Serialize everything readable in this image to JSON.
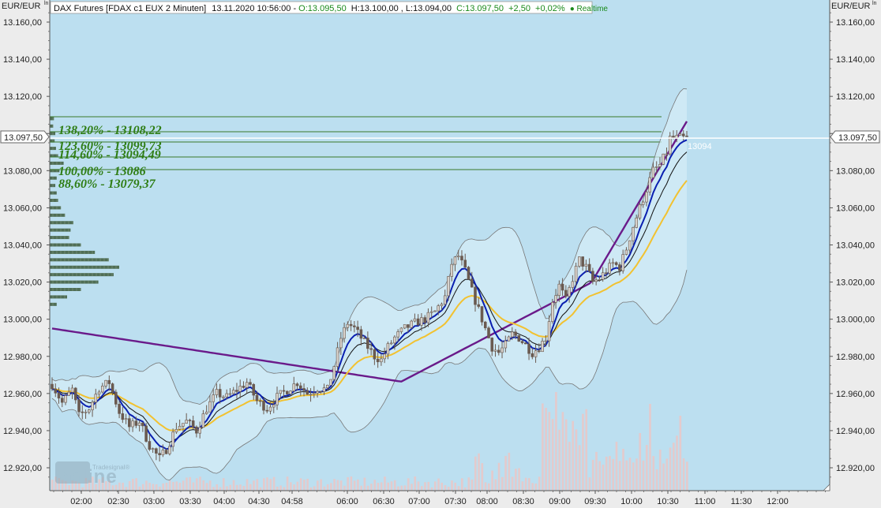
{
  "header": {
    "unit_left": "EUR/EUR",
    "unit_left_sup": "ln",
    "unit_right": "EUR/EUR",
    "unit_right_sup": "ln",
    "instrument": "DAX Futures [FDAX c1 EUX 2 Minuten]",
    "datetime": "13.11.2020 10:56:00",
    "separator": " - ",
    "open": "O:13.095,50",
    "high": "H:13.100,00",
    "low": "L:13.094,00",
    "close": "C:13.097,50",
    "change": "+2,50",
    "change_pct": "+0,02%",
    "realtime": "● Realtime"
  },
  "price_tag_left": "13.097,50",
  "price_tag_right": "13.097,50",
  "last_label": "13094",
  "watermark": {
    "small": "Tradesignal®",
    "big": "online"
  },
  "colors": {
    "plot_bg": "#bcdff0",
    "candle": "#6a5a50",
    "bollinger": "#777777",
    "ema_fast": "#0a1fb0",
    "ema_black": "#111111",
    "ema_yellow": "#f2c230",
    "ema_purple": "#6a1a8a",
    "fib_line": "#3a7a2a",
    "fib_text": "#2e7d14",
    "volume": "#e8c8c8",
    "profile": "#3c5a3a"
  },
  "chart_data": {
    "type": "candlestick",
    "title": "DAX Futures [FDAX c1 EUX 2 Minuten]",
    "ylim": [
      12910,
      13165
    ],
    "yticks": [
      13160,
      13140,
      13120,
      13100,
      13080,
      13060,
      13040,
      13020,
      13000,
      12980,
      12960,
      12940,
      12920
    ],
    "ytick_labels": [
      "13.160,00",
      "13.140,00",
      "13.120,00",
      "13.100,00",
      "13.080,00",
      "13.060,00",
      "13.040,00",
      "13.020,00",
      "13.000,00",
      "12.980,00",
      "12.960,00",
      "12.940,00",
      "12.920,00"
    ],
    "x_labels": [
      "02:00",
      "02:30",
      "03:00",
      "03:30",
      "04:00",
      "04:30",
      "04:58",
      "06:00",
      "06:30",
      "07:00",
      "07:30",
      "08:00",
      "08:30",
      "09:00",
      "09:30",
      "10:00",
      "10:30",
      "11:00",
      "11:30",
      "12:00"
    ],
    "last_price": 13097.5,
    "last_label_value": 13094,
    "fibonacci": [
      {
        "label": "138,20% - 13108,22",
        "value": 13108.22
      },
      {
        "label": "123,60% - 13099,73",
        "value": 13099.73
      },
      {
        "label": "114,60% - 13094,49",
        "value": 13094.49
      },
      {
        "label": "100,00% - 13086",
        "value": 13086
      },
      {
        "label": "88,60% - 13079,37",
        "value": 13079.37
      }
    ],
    "price_path": [
      [
        0,
        12965
      ],
      [
        3,
        12955
      ],
      [
        6,
        12962
      ],
      [
        8,
        12948
      ],
      [
        11,
        12952
      ],
      [
        14,
        12963
      ],
      [
        17,
        12966
      ],
      [
        20,
        12950
      ],
      [
        23,
        12942
      ],
      [
        26,
        12945
      ],
      [
        29,
        12932
      ],
      [
        32,
        12925
      ],
      [
        34,
        12930
      ],
      [
        37,
        12942
      ],
      [
        40,
        12945
      ],
      [
        43,
        12940
      ],
      [
        46,
        12952
      ],
      [
        49,
        12960
      ],
      [
        52,
        12958
      ],
      [
        55,
        12962
      ],
      [
        58,
        12966
      ],
      [
        61,
        12956
      ],
      [
        64,
        12952
      ],
      [
        67,
        12958
      ],
      [
        70,
        12962
      ],
      [
        73,
        12966
      ],
      [
        76,
        12960
      ],
      [
        79,
        12963
      ],
      [
        82,
        12962
      ],
      [
        84,
        12975
      ],
      [
        86,
        12990
      ],
      [
        88,
        12998
      ],
      [
        90,
        12995
      ],
      [
        92,
        12990
      ],
      [
        94,
        12985
      ],
      [
        96,
        12980
      ],
      [
        98,
        12978
      ],
      [
        100,
        12985
      ],
      [
        102,
        12990
      ],
      [
        105,
        12995
      ],
      [
        108,
        12998
      ],
      [
        111,
        13000
      ],
      [
        114,
        13004
      ],
      [
        117,
        13012
      ],
      [
        119,
        13030
      ],
      [
        121,
        13034
      ],
      [
        123,
        13026
      ],
      [
        125,
        13015
      ],
      [
        127,
        13005
      ],
      [
        129,
        12995
      ],
      [
        131,
        12985
      ],
      [
        133,
        12982
      ],
      [
        135,
        12986
      ],
      [
        137,
        12992
      ],
      [
        139,
        12990
      ],
      [
        141,
        12986
      ],
      [
        143,
        12982
      ],
      [
        145,
        12985
      ],
      [
        147,
        12990
      ],
      [
        149,
        13010
      ],
      [
        151,
        13018
      ],
      [
        153,
        13010
      ],
      [
        155,
        13022
      ],
      [
        157,
        13032
      ],
      [
        159,
        13028
      ],
      [
        161,
        13020
      ],
      [
        163,
        13022
      ],
      [
        165,
        13026
      ],
      [
        167,
        13030
      ],
      [
        169,
        13028
      ],
      [
        171,
        13038
      ],
      [
        173,
        13050
      ],
      [
        175,
        13060
      ],
      [
        177,
        13070
      ],
      [
        179,
        13080
      ],
      [
        181,
        13083
      ],
      [
        183,
        13090
      ],
      [
        184,
        13097.5
      ]
    ],
    "volume_profile": [
      [
        13108,
        0.06
      ],
      [
        13104,
        0.05
      ],
      [
        13100,
        0.08
      ],
      [
        13096,
        0.07
      ],
      [
        13092,
        0.09
      ],
      [
        13088,
        0.12
      ],
      [
        13084,
        0.2
      ],
      [
        13080,
        0.14
      ],
      [
        13076,
        0.1
      ],
      [
        13072,
        0.08
      ],
      [
        13068,
        0.1
      ],
      [
        13064,
        0.12
      ],
      [
        13060,
        0.16
      ],
      [
        13056,
        0.22
      ],
      [
        13052,
        0.34
      ],
      [
        13048,
        0.3
      ],
      [
        13044,
        0.28
      ],
      [
        13040,
        0.45
      ],
      [
        13036,
        0.65
      ],
      [
        13032,
        0.85
      ],
      [
        13028,
        1.0
      ],
      [
        13024,
        0.92
      ],
      [
        13020,
        0.7
      ],
      [
        13016,
        0.45
      ],
      [
        13012,
        0.25
      ],
      [
        13008,
        0.1
      ]
    ],
    "legend": "none",
    "grid": false
  }
}
